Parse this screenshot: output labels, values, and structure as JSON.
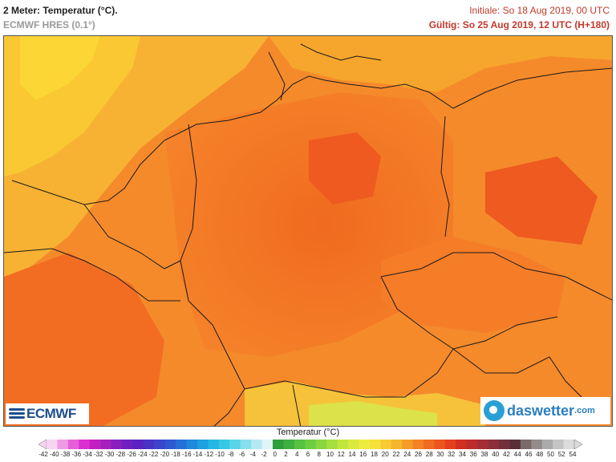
{
  "header": {
    "title": "2 Meter: Temperatur (°C).",
    "model": "ECMWF HRES (0.1°)",
    "initial": "Initiale: So 18 Aug 2019, 00 UTC",
    "valid": "Gültig: So 25 Aug 2019, 12 UTC (H+180)"
  },
  "logos": {
    "left": "ECMWF",
    "right_main": "daswetter",
    "right_suffix": ".com"
  },
  "legend": {
    "title": "Temperatur (°C)",
    "ticks": [
      "-42",
      "-40",
      "-38",
      "-36",
      "-34",
      "-32",
      "-30",
      "-28",
      "-26",
      "-24",
      "-22",
      "-20",
      "-18",
      "-16",
      "-14",
      "-12",
      "-10",
      "-8",
      "-6",
      "-4",
      "-2",
      "0",
      "2",
      "4",
      "6",
      "8",
      "10",
      "12",
      "14",
      "16",
      "18",
      "20",
      "22",
      "24",
      "26",
      "28",
      "30",
      "32",
      "34",
      "36",
      "38",
      "40",
      "42",
      "44",
      "46",
      "48",
      "50",
      "52",
      "54"
    ],
    "colors": [
      "#f7d4f2",
      "#ef9be6",
      "#e65fd9",
      "#db2fcf",
      "#c21fc0",
      "#a51fbd",
      "#8a1ebd",
      "#6f1fbf",
      "#5a22c0",
      "#4a32c6",
      "#3c45cc",
      "#2f59d1",
      "#2570d6",
      "#1e88db",
      "#1fa0e0",
      "#26b6e3",
      "#38c8e6",
      "#5ad4e8",
      "#86dfee",
      "#b4e9f3",
      "#dff5f8",
      "#2e9e3a",
      "#3fb03f",
      "#55c13f",
      "#6ccd3f",
      "#89d63f",
      "#a5df3f",
      "#c1e63f",
      "#dbea3f",
      "#eeeb3f",
      "#f6e03a",
      "#f7cc33",
      "#f6b52d",
      "#f59c28",
      "#f38224",
      "#f16a21",
      "#ee541f",
      "#e43f1f",
      "#d12f22",
      "#bc2c2c",
      "#a52e35",
      "#8c2e3a",
      "#72303d",
      "#5a2e39",
      "#7a6a6a",
      "#938a8a",
      "#ababab",
      "#c4c4c4",
      "#dcdcdc"
    ]
  }
}
